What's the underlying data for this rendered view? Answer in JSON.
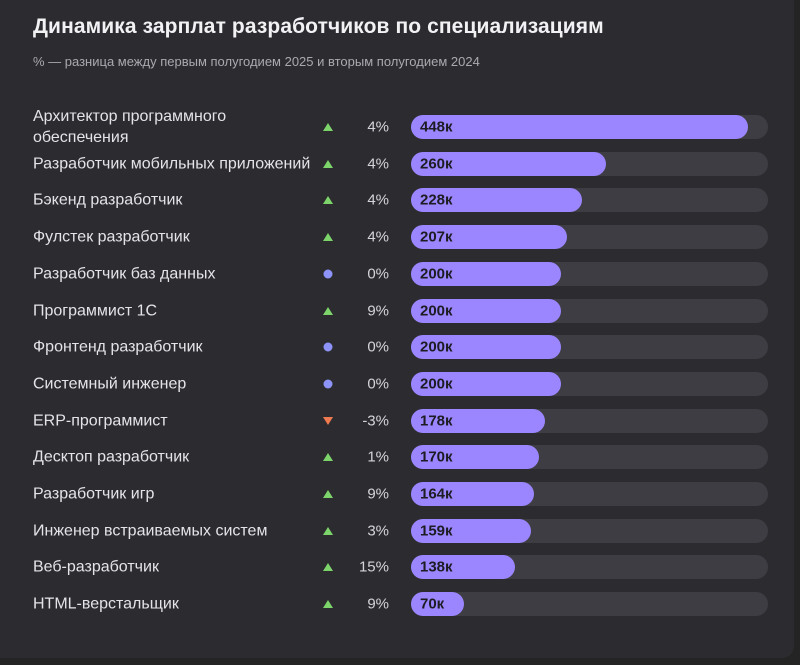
{
  "chart_data": {
    "type": "bar",
    "title": "Динамика зарплат разработчиков по специализациям",
    "subtitle": "% — разница между первым полугодием 2025 и вторым полугодием 2024",
    "xlim": [
      0,
      475
    ],
    "colors": {
      "up": "#7cd46a",
      "down": "#ef7a4f",
      "flat": "#8e93f7",
      "bar": "#9b86ff"
    },
    "rows": [
      {
        "label": "Архитектор программного обеспечения",
        "change": "4%",
        "trend": "up",
        "value": 448,
        "value_label": "448к"
      },
      {
        "label": "Разработчик мобильных приложений",
        "change": "4%",
        "trend": "up",
        "value": 260,
        "value_label": "260к"
      },
      {
        "label": "Бэкенд разработчик",
        "change": "4%",
        "trend": "up",
        "value": 228,
        "value_label": "228к"
      },
      {
        "label": "Фулстек разработчик",
        "change": "4%",
        "trend": "up",
        "value": 207,
        "value_label": "207к"
      },
      {
        "label": "Разработчик баз данных",
        "change": "0%",
        "trend": "flat",
        "value": 200,
        "value_label": "200к"
      },
      {
        "label": "Программист 1С",
        "change": "9%",
        "trend": "up",
        "value": 200,
        "value_label": "200к"
      },
      {
        "label": "Фронтенд разработчик",
        "change": "0%",
        "trend": "flat",
        "value": 200,
        "value_label": "200к"
      },
      {
        "label": "Системный инженер",
        "change": "0%",
        "trend": "flat",
        "value": 200,
        "value_label": "200к"
      },
      {
        "label": "ERP-программист",
        "change": "-3%",
        "trend": "down",
        "value": 178,
        "value_label": "178к"
      },
      {
        "label": "Десктоп разработчик",
        "change": "1%",
        "trend": "up",
        "value": 170,
        "value_label": "170к"
      },
      {
        "label": "Разработчик игр",
        "change": "9%",
        "trend": "up",
        "value": 164,
        "value_label": "164к"
      },
      {
        "label": "Инженер встраиваемых систем",
        "change": "3%",
        "trend": "up",
        "value": 159,
        "value_label": "159к"
      },
      {
        "label": "Веб-разработчик",
        "change": "15%",
        "trend": "up",
        "value": 138,
        "value_label": "138к"
      },
      {
        "label": "HTML-верстальщик",
        "change": "9%",
        "trend": "up",
        "value": 70,
        "value_label": "70к"
      }
    ]
  }
}
